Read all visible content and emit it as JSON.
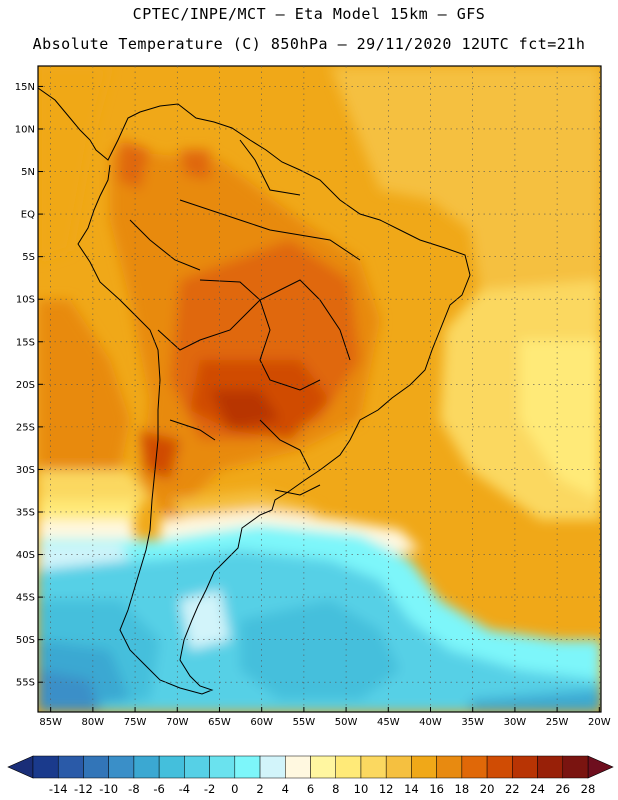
{
  "header": {
    "line1": "CPTEC/INPE/MCT –  Eta Model 15km – GFS",
    "line2": "Absolute Temperature (C) 850hPa – 29/11/2020 12UTC fct=21h"
  },
  "map": {
    "lat_labels": [
      "15N",
      "10N",
      "5N",
      "EQ",
      "5S",
      "10S",
      "15S",
      "20S",
      "25S",
      "30S",
      "35S",
      "40S",
      "45S",
      "50S",
      "55S"
    ],
    "lon_labels": [
      "85W",
      "80W",
      "75W",
      "70W",
      "65W",
      "60W",
      "55W",
      "50W",
      "45W",
      "40W",
      "35W",
      "30W",
      "25W",
      "20W"
    ],
    "lat_values": [
      15,
      10,
      5,
      0,
      -5,
      -10,
      -15,
      -20,
      -25,
      -30,
      -35,
      -40,
      -45,
      -50,
      -55
    ],
    "lon_values": [
      -85,
      -80,
      -75,
      -70,
      -65,
      -60,
      -55,
      -50,
      -45,
      -40,
      -35,
      -30,
      -25,
      -20
    ]
  },
  "colorbar": {
    "labels": [
      "-14",
      "-12",
      "-10",
      "-8",
      "-6",
      "-4",
      "-2",
      "0",
      "2",
      "4",
      "6",
      "8",
      "10",
      "12",
      "14",
      "16",
      "18",
      "20",
      "22",
      "24",
      "26",
      "28"
    ],
    "colors": [
      "#1a3a8c",
      "#2a5aa8",
      "#3275b8",
      "#3a8fc8",
      "#3ba8d2",
      "#44bfdc",
      "#56d0e6",
      "#6ae2ee",
      "#7df6fa",
      "#d2f4fa",
      "#fff8e0",
      "#fff6a0",
      "#ffea78",
      "#fbd860",
      "#f5c040",
      "#f0a818",
      "#e88a10",
      "#e06808",
      "#d04c04",
      "#b83404",
      "#982008",
      "#7a1410"
    ],
    "low_color": "#1a2e78",
    "high_color": "#6e0e1e"
  }
}
